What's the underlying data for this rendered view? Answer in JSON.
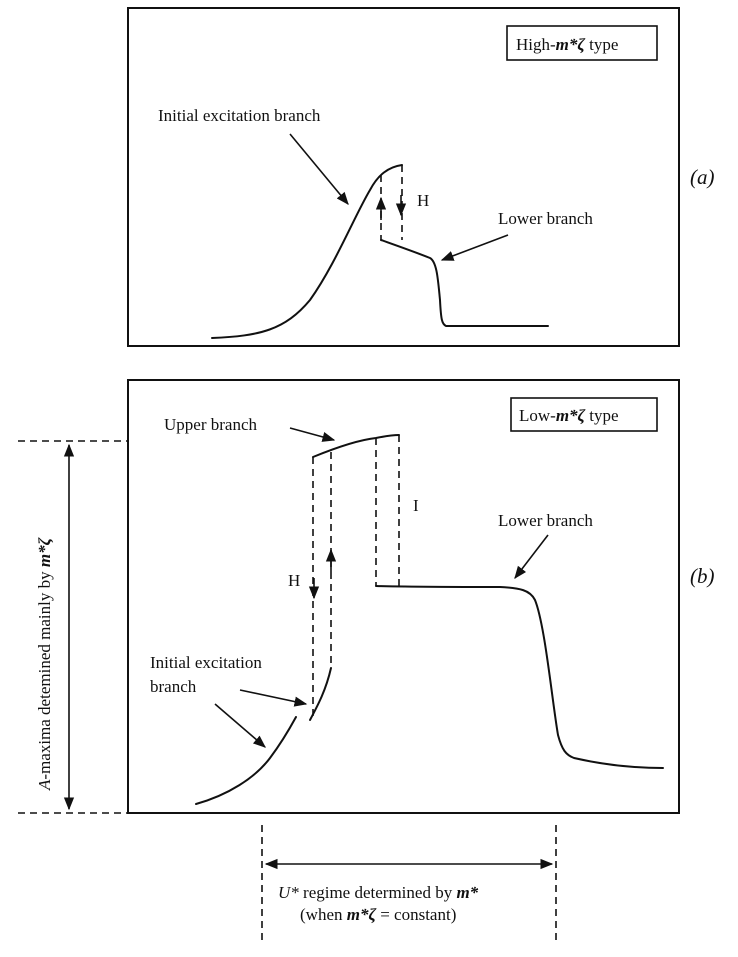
{
  "panel_a": {
    "tag": "(a)",
    "type_prefix": "High-",
    "type_var": "m*ζ",
    "type_suffix": " type",
    "initial_branch": "Initial excitation branch",
    "lower_branch": "Lower branch",
    "hysteresis": "H"
  },
  "panel_b": {
    "tag": "(b)",
    "type_prefix": "Low-",
    "type_var": "m*ζ",
    "type_suffix": " type",
    "upper_branch": "Upper branch",
    "lower_branch": "Lower branch",
    "initial_branch_line1": "Initial excitation",
    "initial_branch_line2": "branch",
    "hysteresis": "H",
    "intermittent": "I"
  },
  "vertical_annotation": {
    "var": "A",
    "text_mid": "-maxima detemined mainly by ",
    "var2": "m*ζ"
  },
  "horizontal_annotation": {
    "var": "U*",
    "text_mid": " regime determined by ",
    "var2": "m*",
    "line2_prefix": "(when  ",
    "line2_var": "m*ζ",
    "line2_suffix": " = constant)"
  }
}
